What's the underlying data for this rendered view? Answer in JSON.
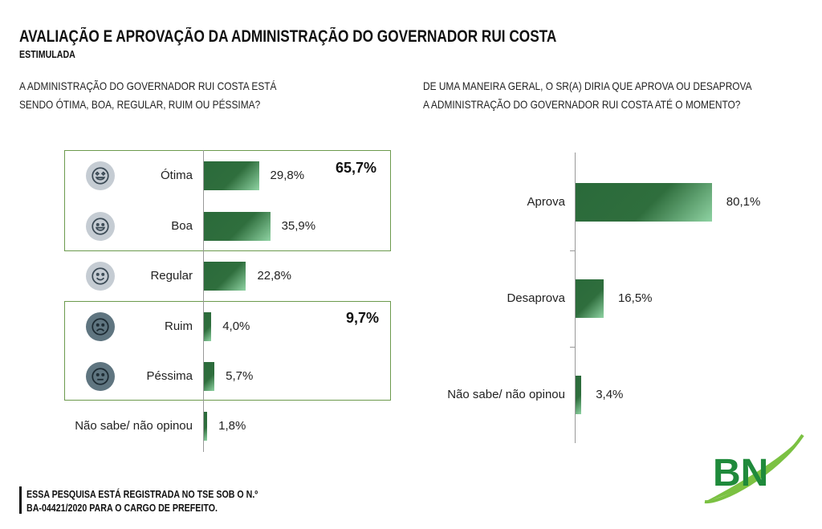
{
  "title": "AVALIAÇÃO E APROVAÇÃO DA ADMINISTRAÇÃO DO GOVERNADOR RUI COSTA",
  "subtitle": "ESTIMULADA",
  "footer": {
    "line1": "ESSA PESQUISA ESTÁ REGISTRADA NO TSE SOB O N.º",
    "line2": "BA-04421/2020 PARA O CARGO DE PREFEITO."
  },
  "logo": {
    "text": "BN"
  },
  "chart_data": [
    {
      "type": "bar",
      "orientation": "horizontal",
      "title": "A ADMINISTRAÇÃO DO GOVERNADOR RUI COSTA ESTÁ SENDO ÓTIMA, BOA, REGULAR, RUIM OU PÉSSIMA?",
      "title_lines": [
        "A ADMINISTRAÇÃO DO GOVERNADOR RUI COSTA ESTÁ",
        "SENDO ÓTIMA, BOA, REGULAR, RUIM OU PÉSSIMA?"
      ],
      "categories": [
        "Ótima",
        "Boa",
        "Regular",
        "Ruim",
        "Péssima",
        "Não sabe/ não opinou"
      ],
      "values": [
        29.8,
        35.9,
        22.8,
        4.0,
        5.7,
        1.8
      ],
      "value_labels": [
        "29,8%",
        "35,9%",
        "22,8%",
        "4,0%",
        "5,7%",
        "1,8%"
      ],
      "icons": [
        "heart-eyes-face-icon",
        "grinning-face-icon",
        "smiling-face-icon",
        "frowning-face-icon",
        "neutral-face-icon",
        ""
      ],
      "groups": [
        {
          "label": "65,7%",
          "categories": [
            "Ótima",
            "Boa"
          ]
        },
        {
          "label": "9,7%",
          "categories": [
            "Ruim",
            "Péssima"
          ]
        }
      ]
    },
    {
      "type": "bar",
      "orientation": "horizontal",
      "title": "DE UMA MANEIRA GERAL, O SR(A) DIRIA QUE APROVA OU DESAPROVA A ADMINISTRAÇÃO DO GOVERNADOR RUI COSTA ATÉ O MOMENTO?",
      "title_lines": [
        "DE UMA MANEIRA GERAL, O SR(A) DIRIA QUE APROVA OU DESAPROVA",
        "A ADMINISTRAÇÃO DO GOVERNADOR RUI COSTA ATÉ O MOMENTO?"
      ],
      "categories": [
        "Aprova",
        "Desaprova",
        "Não sabe/ não opinou"
      ],
      "values": [
        80.1,
        16.5,
        3.4
      ],
      "value_labels": [
        "80,1%",
        "16,5%",
        "3,4%"
      ]
    }
  ]
}
